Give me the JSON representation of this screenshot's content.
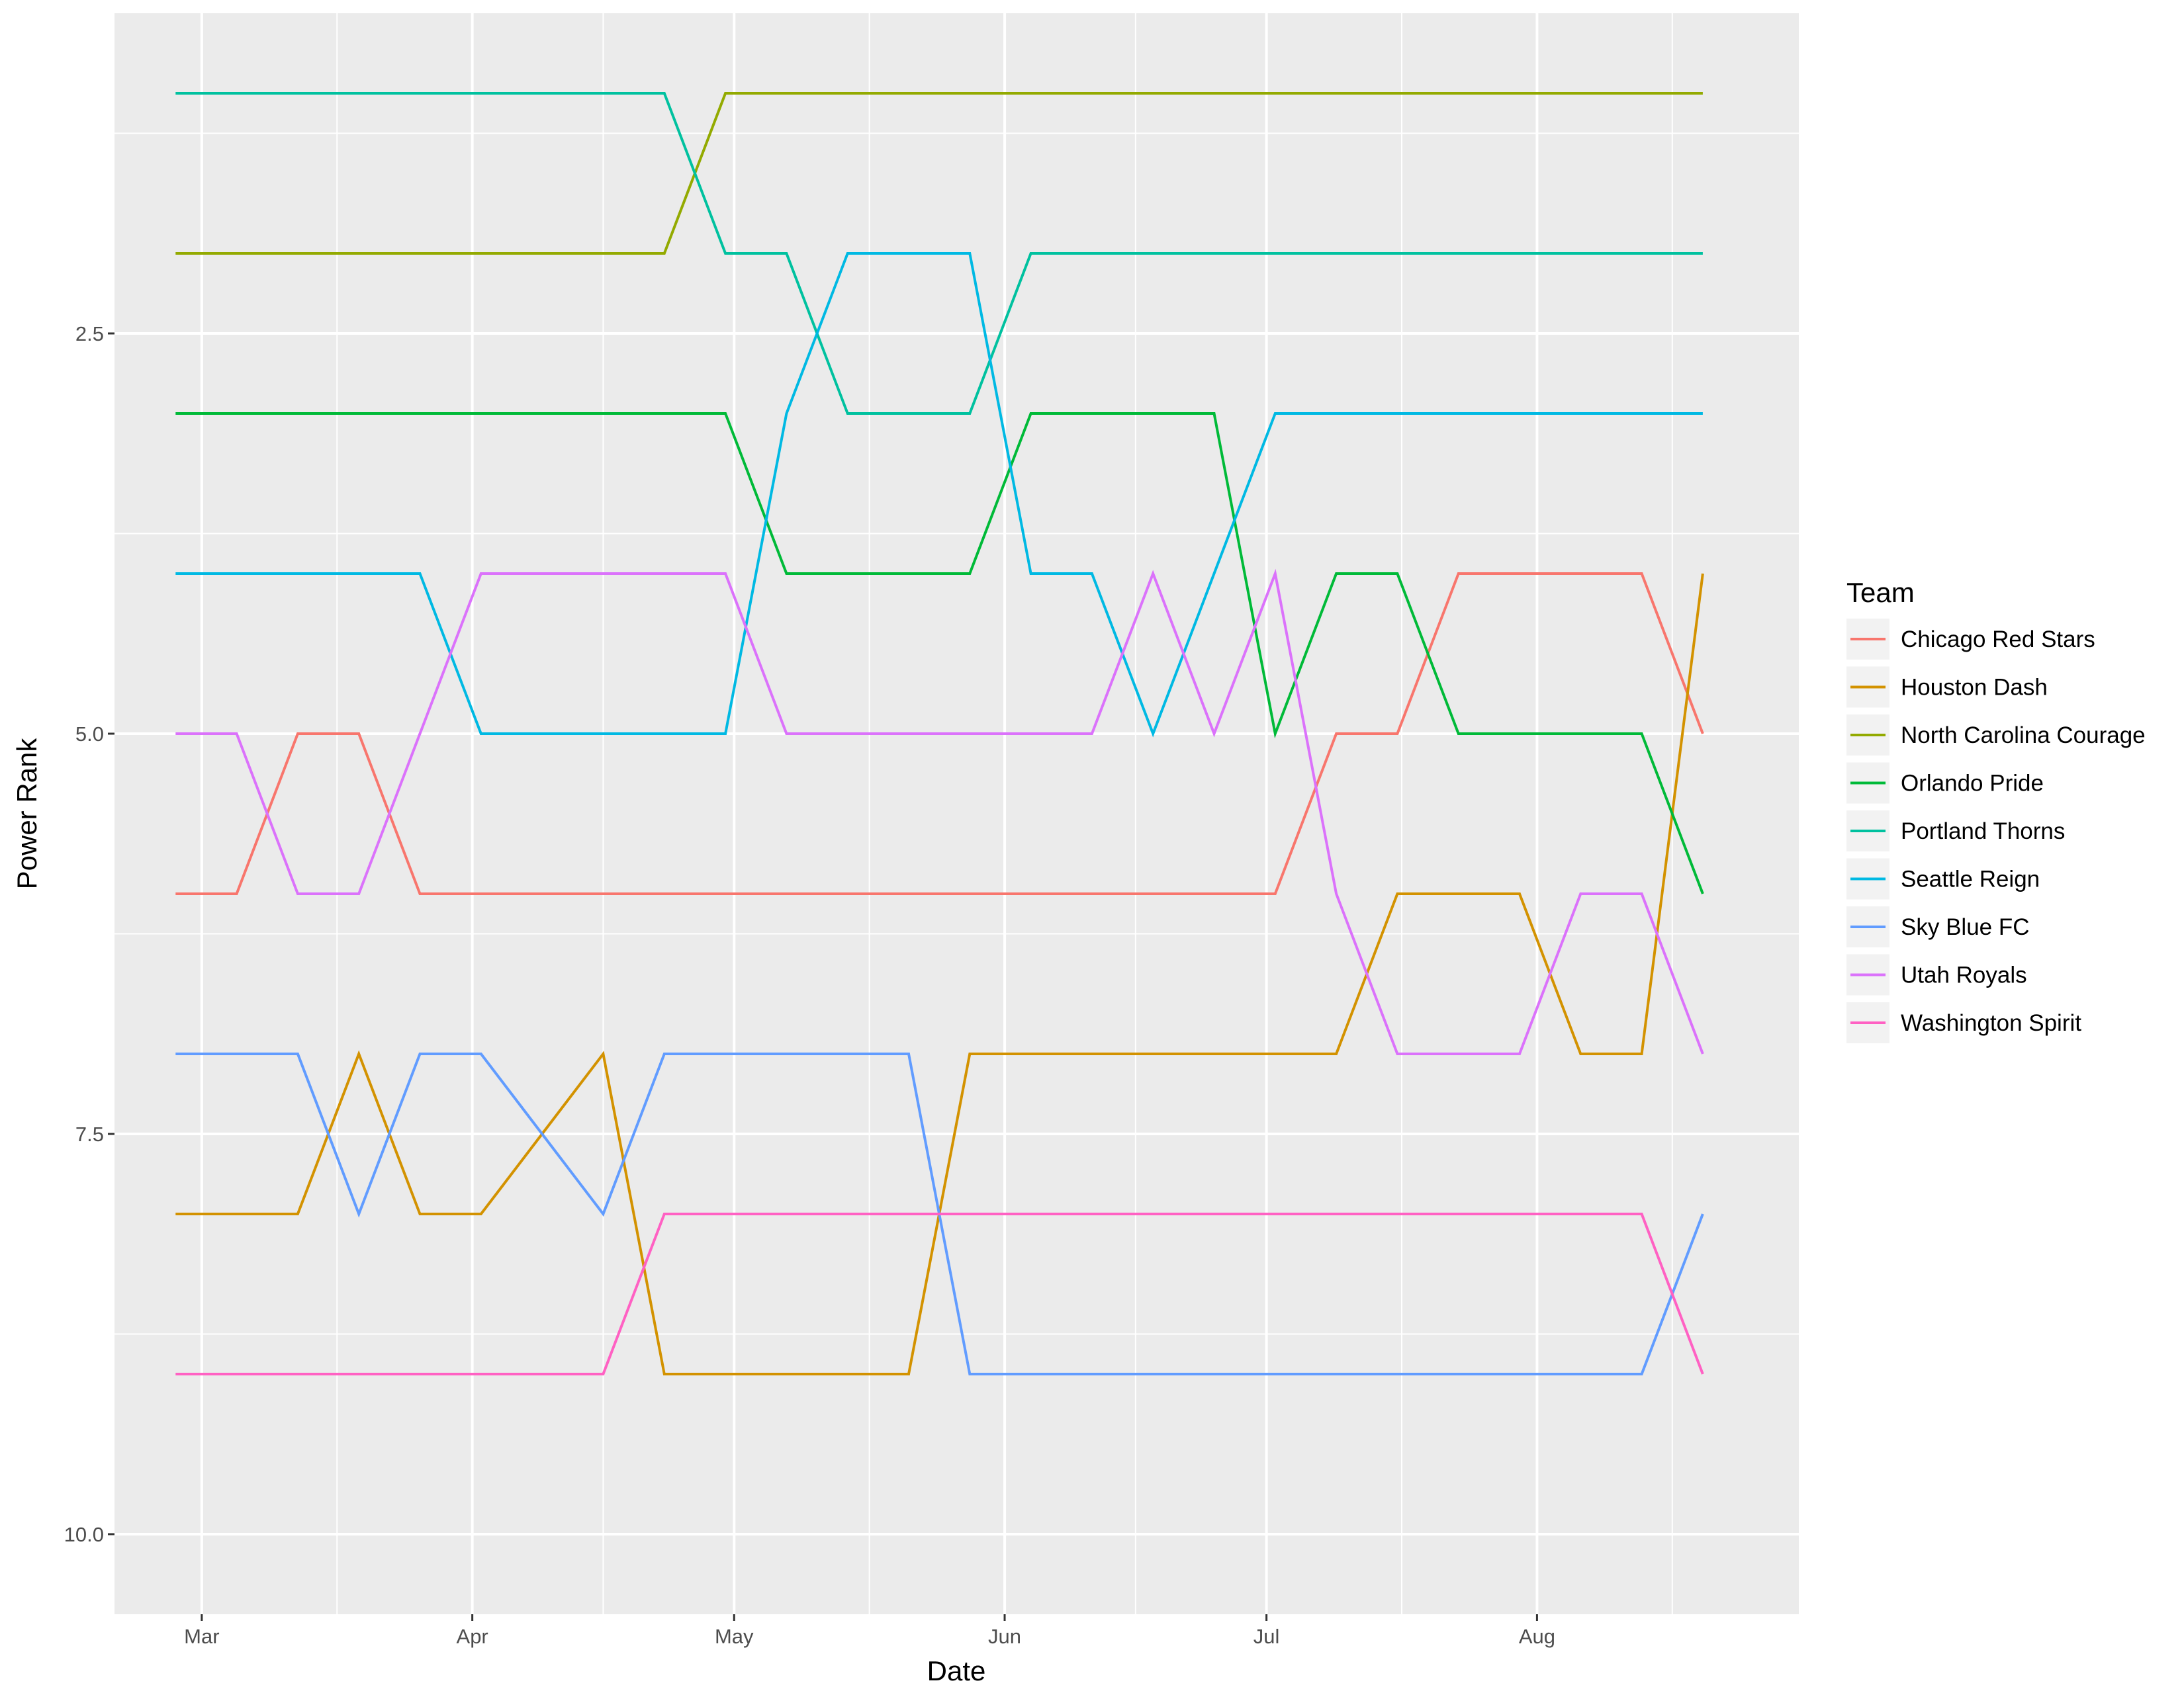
{
  "chart_data": {
    "type": "line",
    "xlabel": "Date",
    "ylabel": "Power Rank",
    "legend": {
      "title": "Team",
      "position": "right"
    },
    "grid": true,
    "y_reversed": true,
    "ylim": [
      10.5,
      0.5
    ],
    "yticks": [
      2.5,
      5.0,
      7.5,
      10.0
    ],
    "ytick_labels": [
      "2.5",
      "5.0",
      "7.5",
      "10.0"
    ],
    "xlim": [
      "2018-02-19",
      "2018-08-31"
    ],
    "xticks": [
      "2018-03-01",
      "2018-04-01",
      "2018-05-01",
      "2018-06-01",
      "2018-07-01",
      "2018-08-01"
    ],
    "xtick_labels": [
      "Mar",
      "Apr",
      "May",
      "Jun",
      "Jul",
      "Aug"
    ],
    "x": [
      "2018-02-26",
      "2018-03-05",
      "2018-03-12",
      "2018-03-19",
      "2018-03-26",
      "2018-04-02",
      "2018-04-09",
      "2018-04-16",
      "2018-04-23",
      "2018-04-30",
      "2018-05-07",
      "2018-05-14",
      "2018-05-21",
      "2018-05-28",
      "2018-06-04",
      "2018-06-11",
      "2018-06-18",
      "2018-06-25",
      "2018-07-02",
      "2018-07-09",
      "2018-07-16",
      "2018-07-23",
      "2018-07-30",
      "2018-08-06",
      "2018-08-13",
      "2018-08-20"
    ],
    "series": [
      {
        "name": "Chicago Red Stars",
        "color": "#F8766D",
        "values": [
          6,
          6,
          5,
          5,
          6,
          6,
          6,
          6,
          6,
          6,
          6,
          6,
          6,
          6,
          6,
          6,
          6,
          6,
          6,
          5,
          5,
          4,
          4,
          4,
          4,
          5
        ]
      },
      {
        "name": "Houston Dash",
        "color": "#D39200",
        "values": [
          8,
          8,
          8,
          7,
          8,
          8,
          7.5,
          7,
          9,
          9,
          9,
          9,
          9,
          7,
          7,
          7,
          7,
          7,
          7,
          7,
          6,
          6,
          6,
          7,
          7,
          4
        ]
      },
      {
        "name": "North Carolina Courage",
        "color": "#93AA00",
        "values": [
          2,
          2,
          2,
          2,
          2,
          2,
          2,
          2,
          2,
          1,
          1,
          1,
          1,
          1,
          1,
          1,
          1,
          1,
          1,
          1,
          1,
          1,
          1,
          1,
          1,
          1
        ]
      },
      {
        "name": "Orlando Pride",
        "color": "#00BA38",
        "values": [
          3,
          3,
          3,
          3,
          3,
          3,
          3,
          3,
          3,
          3,
          4,
          4,
          4,
          4,
          3,
          3,
          3,
          3,
          5,
          4,
          4,
          5,
          5,
          5,
          5,
          6
        ]
      },
      {
        "name": "Portland Thorns",
        "color": "#00C19F",
        "values": [
          1,
          1,
          1,
          1,
          1,
          1,
          1,
          1,
          1,
          2,
          2,
          3,
          3,
          3,
          2,
          2,
          2,
          2,
          2,
          2,
          2,
          2,
          2,
          2,
          2,
          2
        ]
      },
      {
        "name": "Seattle Reign",
        "color": "#00B9E3",
        "values": [
          4,
          4,
          4,
          4,
          4,
          5,
          5,
          5,
          5,
          5,
          3,
          2,
          2,
          2,
          4,
          4,
          5,
          4,
          3,
          3,
          3,
          3,
          3,
          3,
          3,
          3
        ]
      },
      {
        "name": "Sky Blue FC",
        "color": "#619CFF",
        "values": [
          7,
          7,
          7,
          8,
          7,
          7,
          7.5,
          8,
          7,
          7,
          7,
          7,
          7,
          9,
          9,
          9,
          9,
          9,
          9,
          9,
          9,
          9,
          9,
          9,
          9,
          8
        ]
      },
      {
        "name": "Utah Royals",
        "color": "#DB72FB",
        "values": [
          5,
          5,
          6,
          6,
          5,
          4,
          4,
          4,
          4,
          4,
          5,
          5,
          5,
          5,
          5,
          5,
          4,
          5,
          4,
          6,
          7,
          7,
          7,
          6,
          6,
          7
        ]
      },
      {
        "name": "Washington Spirit",
        "color": "#FF61C3",
        "values": [
          9,
          9,
          9,
          9,
          9,
          9,
          9,
          9,
          8,
          8,
          8,
          8,
          8,
          8,
          8,
          8,
          8,
          8,
          8,
          8,
          8,
          8,
          8,
          8,
          8,
          9
        ]
      }
    ]
  }
}
